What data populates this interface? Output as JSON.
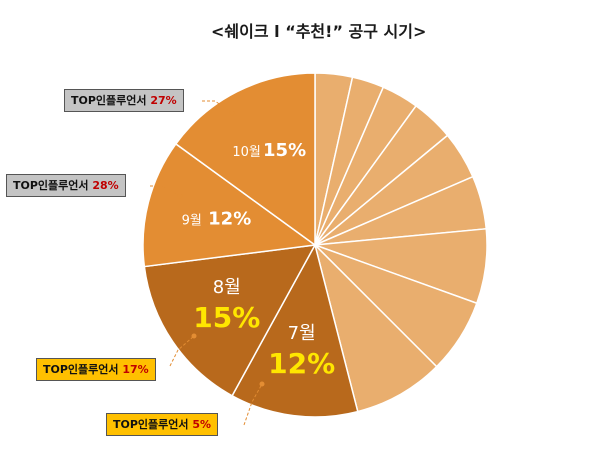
{
  "chart_title": "<쉐이크 l  “추천!” 공구 시기>",
  "chart_data": {
    "type": "pie",
    "title": "<쉐이크 l  “추천!” 공구 시기>",
    "slices": [
      {
        "label": "",
        "value": 3.5,
        "color": "#e9ae6e"
      },
      {
        "label": "",
        "value": 3.0,
        "color": "#e9ae6e"
      },
      {
        "label": "",
        "value": 3.5,
        "color": "#e9ae6e"
      },
      {
        "label": "",
        "value": 4.0,
        "color": "#e9ae6e"
      },
      {
        "label": "",
        "value": 4.5,
        "color": "#e9ae6e"
      },
      {
        "label": "",
        "value": 5.0,
        "color": "#e9ae6e"
      },
      {
        "label": "",
        "value": 7.0,
        "color": "#e9ae6e"
      },
      {
        "label": "",
        "value": 7.0,
        "color": "#e9ae6e"
      },
      {
        "label": "",
        "value": 8.5,
        "color": "#e9ae6e"
      },
      {
        "label": "7월",
        "value": 12,
        "display": "12%",
        "color": "#b8691c"
      },
      {
        "label": "8월",
        "value": 15,
        "display": "15%",
        "color": "#b8691c"
      },
      {
        "label": "9월",
        "value": 12,
        "display": "12%",
        "color": "#e38d33"
      },
      {
        "label": "10월",
        "value": 15,
        "display": "15%",
        "color": "#e38d33"
      }
    ]
  },
  "callouts": [
    {
      "label": "TOP인플루언서",
      "pct": "27%",
      "style": "gray"
    },
    {
      "label": "TOP인플루언서",
      "pct": "28%",
      "style": "gray"
    },
    {
      "label": "TOP인플루언서",
      "pct": "17%",
      "style": "yellow"
    },
    {
      "label": "TOP인플루언서",
      "pct": "5%",
      "style": "yellow"
    }
  ]
}
